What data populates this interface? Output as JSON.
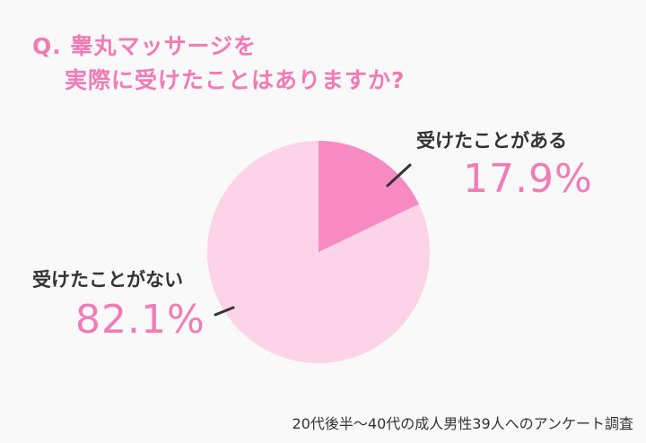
{
  "title": {
    "line1": "Q. 睾丸マッサージを",
    "line2": "実際に受けたことはありますか?"
  },
  "labels": {
    "yes": {
      "text": "受けたことがある",
      "percent": "17.9%"
    },
    "no": {
      "text": "受けたことがない",
      "percent": "82.1%"
    }
  },
  "footnote": "20代後半〜40代の成人男性39人へのアンケート調査",
  "colors": {
    "accent": "#f27ab5",
    "yes_slice": "#f78ac3",
    "no_slice": "#fdd3e8",
    "background": "#f9f9f9"
  },
  "chart_data": {
    "type": "pie",
    "title": "Q. 睾丸マッサージを実際に受けたことはありますか?",
    "categories": [
      "受けたことがある",
      "受けたことがない"
    ],
    "values": [
      17.9,
      82.1
    ],
    "unit": "%",
    "colors": [
      "#f78ac3",
      "#fdd3e8"
    ],
    "start_angle": "12 o'clock, clockwise",
    "note": "20代後半〜40代の成人男性39人へのアンケート調査"
  }
}
